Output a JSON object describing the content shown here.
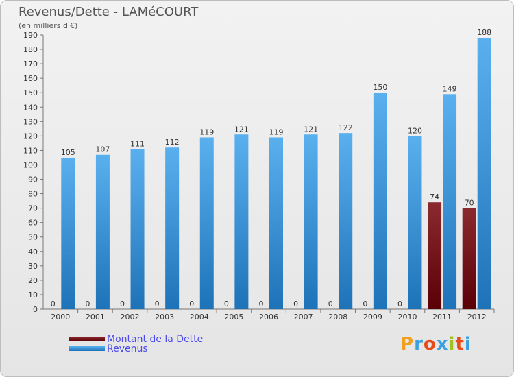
{
  "colors": {
    "dette_top": "#8b2a2e",
    "dette_bottom": "#5a0007",
    "revenus_top": "#5ab0ee",
    "revenus_bottom": "#1e73b8",
    "legend_text": "#4a4af0",
    "axis_text": "#333333"
  },
  "chart_data": {
    "type": "bar",
    "title": "Revenus/Dette - LAMéCOURT",
    "subtitle": "(en milliers d'€)",
    "categories": [
      "2000",
      "2001",
      "2002",
      "2003",
      "2004",
      "2005",
      "2006",
      "2007",
      "2008",
      "2009",
      "2010",
      "2011",
      "2012"
    ],
    "series": [
      {
        "name": "Montant de la Dette",
        "values": [
          0,
          0,
          0,
          0,
          0,
          0,
          0,
          0,
          0,
          0,
          0,
          74,
          70
        ]
      },
      {
        "name": "Revenus",
        "values": [
          105,
          107,
          111,
          112,
          119,
          121,
          119,
          121,
          122,
          150,
          120,
          149,
          188
        ]
      }
    ],
    "ylim": [
      0,
      190
    ],
    "yticks": [
      0,
      10,
      20,
      30,
      40,
      50,
      60,
      70,
      80,
      90,
      100,
      110,
      120,
      130,
      140,
      150,
      160,
      170,
      180,
      190
    ],
    "grid": false,
    "legend": "bottom-left"
  },
  "logo": {
    "letters": [
      "P",
      "r",
      "o",
      "x",
      "i",
      "t",
      "i"
    ],
    "colors": [
      "#f0a020",
      "#3aa0e0",
      "#e84a1a",
      "#3aa0e0",
      "#a0c020",
      "#e84a1a",
      "#3aa0e0"
    ]
  }
}
